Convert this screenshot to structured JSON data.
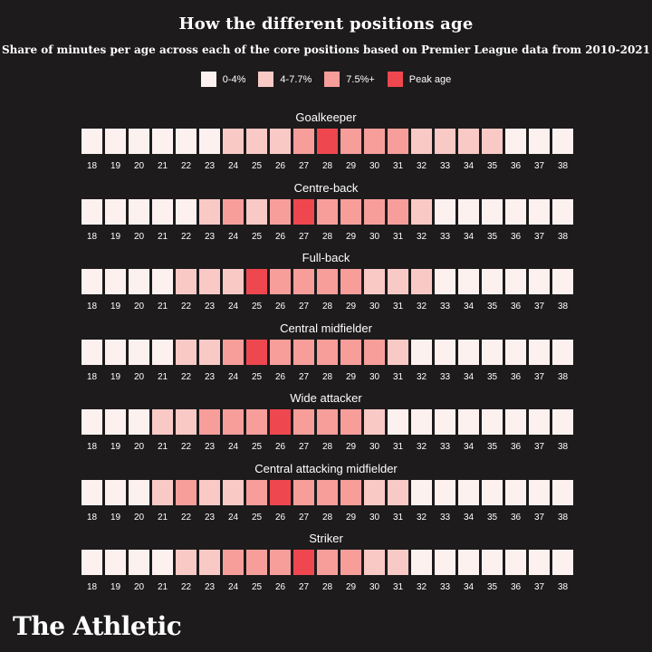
{
  "title": "How the different positions age",
  "subtitle": "Share of minutes per age across each of the core positions based on Premier League data from 2010-2021",
  "logo_text": "The Athletic",
  "colors": {
    "background": "#1d1b1c",
    "level0": "#fdf1f0",
    "level1": "#f9c9c6",
    "level2": "#f79e9b",
    "peak": "#ef474f"
  },
  "chart_data": {
    "type": "heatmap",
    "title": "How the different positions age",
    "subtitle": "Share of minutes per age across each of the core positions based on Premier League data from 2010-2021",
    "legend": [
      {
        "label": "0-4%",
        "level": 0
      },
      {
        "label": "4-7.7%",
        "level": 1
      },
      {
        "label": "7.5%+",
        "level": 2
      },
      {
        "label": "Peak age",
        "level": 3
      }
    ],
    "ages": [
      "18",
      "19",
      "20",
      "21",
      "22",
      "23",
      "24",
      "25",
      "26",
      "27",
      "28",
      "29",
      "30",
      "31",
      "32",
      "33",
      "34",
      "35",
      "36",
      "37",
      "38"
    ],
    "rows": [
      {
        "name": "Goalkeeper",
        "levels": [
          0,
          0,
          0,
          0,
          0,
          0,
          1,
          1,
          1,
          2,
          3,
          2,
          2,
          2,
          1,
          1,
          1,
          1,
          0,
          0,
          0
        ]
      },
      {
        "name": "Centre-back",
        "levels": [
          0,
          0,
          0,
          0,
          0,
          1,
          2,
          1,
          2,
          3,
          2,
          2,
          2,
          2,
          1,
          0,
          0,
          0,
          0,
          0,
          0
        ]
      },
      {
        "name": "Full-back",
        "levels": [
          0,
          0,
          0,
          0,
          1,
          1,
          1,
          3,
          2,
          2,
          2,
          2,
          1,
          1,
          1,
          0,
          0,
          0,
          0,
          0,
          0
        ]
      },
      {
        "name": "Central midfielder",
        "levels": [
          0,
          0,
          0,
          0,
          1,
          1,
          2,
          3,
          2,
          2,
          2,
          2,
          2,
          1,
          0,
          0,
          0,
          0,
          0,
          0,
          0
        ]
      },
      {
        "name": "Wide attacker",
        "levels": [
          0,
          0,
          0,
          1,
          1,
          2,
          2,
          2,
          3,
          2,
          2,
          2,
          1,
          0,
          0,
          0,
          0,
          0,
          0,
          0,
          0
        ]
      },
      {
        "name": "Central attacking midfielder",
        "levels": [
          0,
          0,
          0,
          1,
          2,
          1,
          1,
          2,
          3,
          2,
          2,
          2,
          1,
          1,
          0,
          0,
          0,
          0,
          0,
          0,
          0
        ]
      },
      {
        "name": "Striker",
        "levels": [
          0,
          0,
          0,
          0,
          1,
          1,
          2,
          2,
          2,
          3,
          2,
          2,
          1,
          1,
          0,
          0,
          0,
          0,
          0,
          0,
          0
        ]
      }
    ]
  }
}
